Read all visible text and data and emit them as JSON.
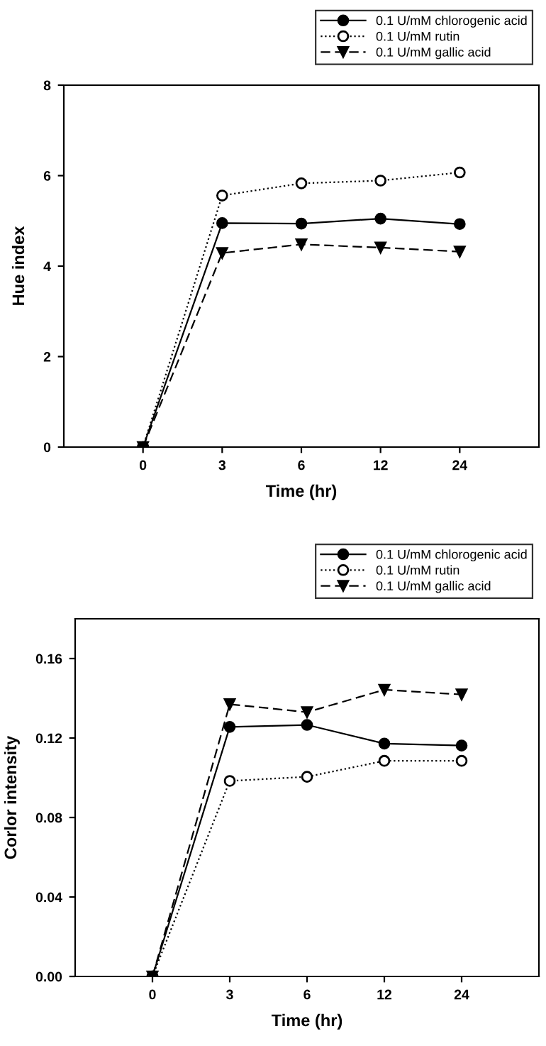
{
  "chart_data": [
    {
      "type": "line",
      "xlabel": "Time (hr)",
      "ylabel": "Hue index",
      "categories": [
        "0",
        "3",
        "6",
        "12",
        "24"
      ],
      "ylim": [
        0,
        8
      ],
      "yticks": [
        0,
        2,
        4,
        6,
        8
      ],
      "legend": "top right",
      "grid": false,
      "series": [
        {
          "name": "0.1 U/mM chlorogenic acid",
          "color": "#000000",
          "marker": "circle",
          "line_style": "solid",
          "values": [
            0,
            4.95,
            4.94,
            5.05,
            4.93
          ]
        },
        {
          "name": "0.1 U/mM rutin",
          "color": "#000000",
          "marker": "circle",
          "line_style": "dotted",
          "values": [
            0,
            5.56,
            5.83,
            5.89,
            6.07
          ]
        },
        {
          "name": "0.1 U/mM gallic acid",
          "color": "#000000",
          "marker": "triangle",
          "line_style": "dashed",
          "values": [
            0,
            4.29,
            4.48,
            4.41,
            4.32
          ]
        }
      ]
    },
    {
      "type": "line",
      "xlabel": "Time (hr)",
      "ylabel": "Corlor intensity",
      "categories": [
        "0",
        "3",
        "6",
        "12",
        "24"
      ],
      "ylim": [
        0,
        0.18
      ],
      "yticks": [
        {
          "value": 0,
          "label": "0.00"
        },
        {
          "value": 0.04,
          "label": "0.04"
        },
        {
          "value": 0.08,
          "label": "0.08"
        },
        {
          "value": 0.12,
          "label": "0.12"
        },
        {
          "value": 0.16,
          "label": "0.16"
        }
      ],
      "legend": "top right",
      "grid": false,
      "series": [
        {
          "name": "0.1 U/mM chlorogenic acid",
          "color": "#000000",
          "marker": "circle",
          "line_style": "solid",
          "values": [
            0,
            0.1256,
            0.1266,
            0.1172,
            0.1162
          ]
        },
        {
          "name": "0.1 U/mM rutin",
          "color": "#000000",
          "marker": "circle",
          "line_style": "dotted",
          "values": [
            0,
            0.0984,
            0.1005,
            0.1085,
            0.1085
          ]
        },
        {
          "name": "0.1 U/mM gallic acid",
          "color": "#000000",
          "marker": "triangle",
          "line_style": "dashed",
          "values": [
            0,
            0.137,
            0.133,
            0.1443,
            0.1419
          ]
        }
      ]
    }
  ]
}
